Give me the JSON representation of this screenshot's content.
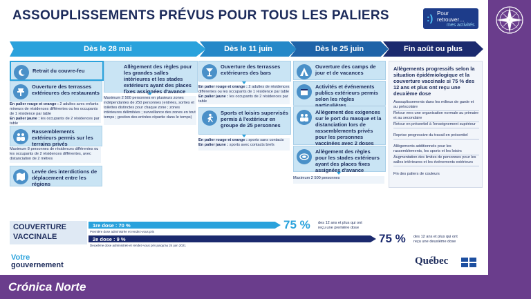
{
  "title": "ASSOUPLISSEMENTS PRÉVUS POUR TOUS LES PALIERS",
  "badge": {
    "l1": "Pour",
    "l2": "retrouver…",
    "l3": "mes activités"
  },
  "phases": [
    "Dès le 28 mai",
    "Dès le 11 juin",
    "Dès le 25 juin",
    "Fin août ou plus"
  ],
  "may28": {
    "couvre_feu": "Retrait du couvre-feu",
    "terrasses": "Ouverture des terrasses extérieures des restaurants",
    "terrasses_note_rouge_k": "En palier rouge et orange :",
    "terrasses_note_rouge": " 2 adultes avec enfants mineurs de résidences différentes ou les occupants de 1 résidence par table",
    "terrasses_note_jaune_k": "En palier jaune :",
    "terrasses_note_jaune": " les occupants de 2 résidences par table",
    "rassemblements": "Rassemblements extérieurs permis sur les terrains privés",
    "rassemblements_note": "Maximum 8 personnes de résidences différentes ou les occupants de 2 résidences différentes, avec distanciation de 2 mètres",
    "levee": "Levée des interdictions de déplacement entre les régions",
    "grandes_salles": "Allègement des règles pour les grandes salles intérieures et les stades extérieurs ayant des places fixes assignées d'avance",
    "grandes_salles_note": "Maximum 2 500 personnes en plusieurs zones indépendantes de 250 personnes (entrées, sorties et toilettes distinctes pour chaque zone ; zones intérieures délimitées ; surveillance des zones en tout temps ; gestion des entrées répartie dans le temps)"
  },
  "jun11": {
    "bars": "Ouverture des terrasses extérieures des bars",
    "bars_note_rouge_k": "En palier rouge et orange :",
    "bars_note_rouge": " 2 adultes de résidences différentes ou les occupants de 1 résidence par table",
    "bars_note_jaune_k": "En palier jaune :",
    "bars_note_jaune": " les occupants de 2 résidences par table",
    "sports": "Sports et loisirs supervisés permis à l'extérieur en groupe de 25 personnes",
    "sports_note_rouge_k": "En palier rouge et orange :",
    "sports_note_rouge": " sports sans contacts",
    "sports_note_jaune_k": "En palier jaune :",
    "sports_note_jaune": " sports avec contacts brefs"
  },
  "jun25": {
    "camps": "Ouverture des camps de jour et de vacances",
    "activites": "Activités et événements publics extérieurs permis selon les règles particulières",
    "masque": "Allègement des exigences sur le port du masque et la distanciation lors de rassemblements privés pour les personnes vaccinées avec 2 doses",
    "stades": "Allègement des règles pour les stades extérieurs ayant des places fixes assignées d'avance",
    "stades_note": "Maximum 2 500 personnes"
  },
  "final": {
    "heading": "Allègements progressifs selon la situation épidémiologique et la couverture vaccinale si 75 % des 12 ans et plus ont reçu une deuxième dose",
    "items": [
      "Assouplissements dans les milieux de garde et au préscolaire",
      "Retour vers une organisation normale au primaire et au secondaire",
      "Retour en présentiel à l'enseignement supérieur",
      "Reprise progressive du travail en présentiel",
      "Allègements additionnels pour les rassemblements, les sports et les loisirs",
      "Augmentation des limites de personnes pour les salles intérieures et les événements extérieurs",
      "Fin des paliers de couleurs"
    ]
  },
  "couverture": {
    "label1": "COUVERTURE",
    "label2": "VACCINALE",
    "dose1_label": "1re dose : 70 %",
    "dose1_sub": "Première dose administrée et rendez-vous pris",
    "dose2_label": "2e dose : 9 %",
    "dose2_sub": "Deuxième dose administrée et rendez-vous pris jusqu'au 24 juin 2021",
    "target1": "75 %",
    "target1_sub1": "des 12 ans et plus qui ont",
    "target1_sub2": "reçu une première dose",
    "target2": "75 %",
    "target2_sub1": "des 12 ans et plus qui ont",
    "target2_sub2": "reçu une deuxième dose",
    "dose1_pct": 70,
    "dose2_pct": 9
  },
  "footer": {
    "votre": "Votre",
    "gouvernement": "gouvernement",
    "quebec": "Québec"
  },
  "brand": "Crónica Norte",
  "colors": {
    "accent": "#2aa2dc",
    "navy": "#1b2a6e",
    "purple": "#6a3d8c"
  }
}
